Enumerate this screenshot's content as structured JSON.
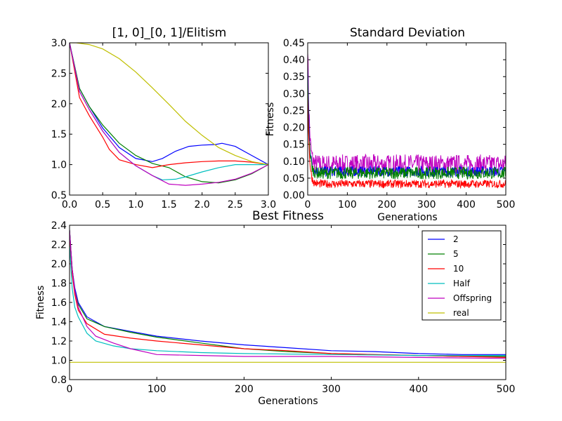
{
  "chart_data": [
    {
      "type": "line",
      "title": "[1, 0]_[0, 1]/Elitism",
      "xlabel": "",
      "ylabel": "",
      "xlim": [
        0,
        3
      ],
      "ylim": [
        0.5,
        3.0
      ],
      "xticks": [
        0.0,
        0.5,
        1.0,
        1.5,
        2.0,
        2.5,
        3.0
      ],
      "xtick_labels": [
        "0.0",
        "0.5",
        "1.0",
        "1.5",
        "2.0",
        "2.5",
        "3.0"
      ],
      "yticks": [
        0.5,
        1.0,
        1.5,
        2.0,
        2.5,
        3.0
      ],
      "ytick_labels": [
        "0.5",
        "1.0",
        "1.5",
        "2.0",
        "2.5",
        "3.0"
      ],
      "series": [
        {
          "name": "2",
          "color": "#0000ff",
          "x": [
            0,
            0.15,
            0.3,
            0.5,
            0.75,
            1.0,
            1.25,
            1.4,
            1.6,
            1.8,
            2.0,
            2.2,
            2.3,
            2.5,
            2.75,
            3.0
          ],
          "y": [
            3.0,
            2.25,
            1.95,
            1.6,
            1.28,
            1.1,
            1.05,
            1.1,
            1.22,
            1.3,
            1.32,
            1.33,
            1.35,
            1.3,
            1.15,
            1.0
          ]
        },
        {
          "name": "5",
          "color": "#008000",
          "x": [
            0,
            0.15,
            0.3,
            0.5,
            0.75,
            1.0,
            1.25,
            1.5,
            1.75,
            2.0,
            2.25,
            2.5,
            2.75,
            3.0
          ],
          "y": [
            3.0,
            2.25,
            1.95,
            1.65,
            1.35,
            1.15,
            1.02,
            0.95,
            0.8,
            0.72,
            0.7,
            0.75,
            0.85,
            1.0
          ]
        },
        {
          "name": "10",
          "color": "#ff0000",
          "x": [
            0,
            0.15,
            0.3,
            0.5,
            0.6,
            0.75,
            1.0,
            1.25,
            1.5,
            1.75,
            2.0,
            2.25,
            2.5,
            2.75,
            3.0
          ],
          "y": [
            3.0,
            2.1,
            1.8,
            1.45,
            1.25,
            1.08,
            1.0,
            0.95,
            1.0,
            1.03,
            1.05,
            1.06,
            1.06,
            1.04,
            1.0
          ]
        },
        {
          "name": "Half",
          "color": "#00bfbf",
          "x": [
            0,
            0.15,
            0.3,
            0.5,
            0.75,
            1.0,
            1.25,
            1.4,
            1.6,
            1.75,
            2.0,
            2.25,
            2.5,
            2.75,
            3.0
          ],
          "y": [
            3.0,
            2.2,
            1.9,
            1.55,
            1.2,
            0.98,
            0.82,
            0.75,
            0.76,
            0.8,
            0.88,
            0.95,
            1.0,
            1.0,
            1.0
          ]
        },
        {
          "name": "Offspring",
          "color": "#bf00bf",
          "x": [
            0,
            0.15,
            0.3,
            0.5,
            0.75,
            1.0,
            1.25,
            1.5,
            1.75,
            2.0,
            2.25,
            2.5,
            2.75,
            3.0
          ],
          "y": [
            3.0,
            2.2,
            1.9,
            1.55,
            1.2,
            0.98,
            0.82,
            0.68,
            0.66,
            0.68,
            0.71,
            0.76,
            0.86,
            1.0
          ]
        },
        {
          "name": "real",
          "color": "#bfbf00",
          "x": [
            0,
            0.1,
            0.3,
            0.5,
            0.75,
            1.0,
            1.25,
            1.5,
            1.75,
            2.0,
            2.25,
            2.5,
            2.75,
            3.0
          ],
          "y": [
            3.0,
            3.0,
            2.97,
            2.9,
            2.74,
            2.52,
            2.26,
            1.99,
            1.71,
            1.48,
            1.28,
            1.15,
            1.05,
            1.0
          ]
        }
      ]
    },
    {
      "type": "line",
      "title": "Standard Deviation",
      "xlabel": "Generations",
      "ylabel": "Fitness",
      "xlim": [
        0,
        500
      ],
      "ylim": [
        0.0,
        0.45
      ],
      "xticks": [
        0,
        100,
        200,
        300,
        400,
        500
      ],
      "xtick_labels": [
        "0",
        "100",
        "200",
        "300",
        "400",
        "500"
      ],
      "yticks": [
        0.0,
        0.05,
        0.1,
        0.15,
        0.2,
        0.25,
        0.3,
        0.35,
        0.4,
        0.45
      ],
      "ytick_labels": [
        "0.00",
        "0.05",
        "0.10",
        "0.15",
        "0.20",
        "0.25",
        "0.30",
        "0.35",
        "0.40",
        "0.45"
      ],
      "series": [
        {
          "name": "Offspring",
          "color": "#bf00bf",
          "start": 0.45,
          "decay_to": 0.09,
          "noise": 0.03
        },
        {
          "name": "2",
          "color": "#0000ff",
          "start": 0.38,
          "decay_to": 0.07,
          "noise": 0.015
        },
        {
          "name": "5",
          "color": "#008000",
          "start": 0.34,
          "decay_to": 0.065,
          "noise": 0.018
        },
        {
          "name": "10",
          "color": "#ff0000",
          "start": 0.3,
          "decay_to": 0.033,
          "noise": 0.012
        }
      ]
    },
    {
      "type": "line",
      "title": "Best Fitness",
      "xlabel": "Generations",
      "ylabel": "Fitness",
      "xlim": [
        0,
        500
      ],
      "ylim": [
        0.8,
        2.4
      ],
      "xticks": [
        0,
        100,
        200,
        300,
        400,
        500
      ],
      "xtick_labels": [
        "0",
        "100",
        "200",
        "300",
        "400",
        "500"
      ],
      "yticks": [
        0.8,
        1.0,
        1.2,
        1.4,
        1.6,
        1.8,
        2.0,
        2.2,
        2.4
      ],
      "ytick_labels": [
        "0.8",
        "1.0",
        "1.2",
        "1.4",
        "1.6",
        "1.8",
        "2.0",
        "2.2",
        "2.4"
      ],
      "legend_position": "top-right",
      "series": [
        {
          "name": "2",
          "color": "#0000ff",
          "x": [
            0,
            3,
            6,
            10,
            20,
            40,
            70,
            100,
            150,
            200,
            250,
            300,
            350,
            400,
            450,
            500
          ],
          "y": [
            2.35,
            1.95,
            1.75,
            1.6,
            1.45,
            1.35,
            1.3,
            1.25,
            1.2,
            1.16,
            1.13,
            1.1,
            1.09,
            1.07,
            1.06,
            1.06
          ]
        },
        {
          "name": "5",
          "color": "#008000",
          "x": [
            0,
            3,
            6,
            10,
            20,
            40,
            70,
            100,
            150,
            200,
            250,
            300,
            350,
            400,
            450,
            500
          ],
          "y": [
            2.35,
            1.95,
            1.72,
            1.58,
            1.43,
            1.35,
            1.29,
            1.24,
            1.18,
            1.12,
            1.09,
            1.07,
            1.06,
            1.05,
            1.04,
            1.04
          ]
        },
        {
          "name": "10",
          "color": "#ff0000",
          "x": [
            0,
            3,
            6,
            10,
            20,
            40,
            70,
            100,
            150,
            200,
            250,
            300,
            350,
            400,
            450,
            500
          ],
          "y": [
            2.3,
            1.9,
            1.68,
            1.52,
            1.38,
            1.27,
            1.23,
            1.2,
            1.16,
            1.12,
            1.1,
            1.07,
            1.06,
            1.05,
            1.04,
            1.03
          ]
        },
        {
          "name": "Half",
          "color": "#00bfbf",
          "x": [
            0,
            3,
            6,
            10,
            20,
            30,
            50,
            70,
            100,
            150,
            200,
            300,
            400,
            500
          ],
          "y": [
            2.2,
            1.75,
            1.55,
            1.45,
            1.28,
            1.2,
            1.15,
            1.12,
            1.1,
            1.08,
            1.07,
            1.06,
            1.05,
            1.05
          ]
        },
        {
          "name": "Offspring",
          "color": "#bf00bf",
          "x": [
            0,
            3,
            6,
            10,
            20,
            30,
            50,
            70,
            100,
            150,
            200,
            300,
            400,
            500
          ],
          "y": [
            2.35,
            1.95,
            1.72,
            1.55,
            1.35,
            1.25,
            1.18,
            1.12,
            1.06,
            1.05,
            1.04,
            1.04,
            1.03,
            1.02
          ]
        },
        {
          "name": "real",
          "color": "#bfbf00",
          "x": [
            0,
            500
          ],
          "y": [
            0.98,
            0.98
          ]
        }
      ]
    }
  ]
}
